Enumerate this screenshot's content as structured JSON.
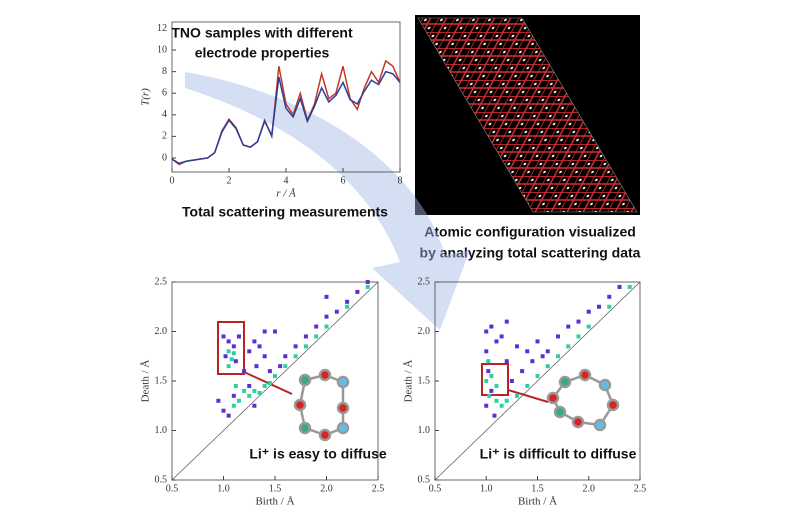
{
  "image_caption": [
    "Atomic configuration visualized",
    "by analyzing total scattering data"
  ],
  "chart_data": [
    {
      "type": "line",
      "xlabel": "r / Å",
      "ylabel": "T(r)",
      "annotations": [
        "TNO samples with different",
        "electrode properties",
        "Total scattering measurements"
      ],
      "x": [
        0,
        0.25,
        0.5,
        0.75,
        1,
        1.25,
        1.5,
        1.75,
        2,
        2.25,
        2.5,
        2.75,
        3,
        3.25,
        3.5,
        3.75,
        4,
        4.25,
        4.5,
        4.75,
        5,
        5.25,
        5.5,
        5.75,
        6,
        6.25,
        6.5,
        6.75,
        7,
        7.25,
        7.5,
        7.75,
        8
      ],
      "series": [
        {
          "color": "#c0392b",
          "values": [
            -0.1,
            -0.6,
            -0.3,
            -0.2,
            -0.1,
            0,
            0.5,
            2.5,
            3.6,
            2.8,
            1.2,
            1,
            1.5,
            3.5,
            2,
            8.5,
            5,
            4,
            6,
            3.5,
            5,
            7.8,
            5.5,
            6,
            8.5,
            5.5,
            4.5,
            6.5,
            8,
            7,
            9,
            8.5,
            7
          ]
        },
        {
          "color": "#2c3e9a",
          "values": [
            -0.1,
            -0.5,
            -0.3,
            -0.2,
            -0.1,
            0,
            0.5,
            2.4,
            3.5,
            2.7,
            1.2,
            1,
            1.5,
            3.4,
            2.1,
            7.5,
            4.6,
            3.8,
            5.5,
            3.4,
            4.8,
            6.5,
            5.2,
            5.8,
            7,
            5.4,
            5,
            6.2,
            7.2,
            6.8,
            8,
            7.8,
            7
          ]
        }
      ],
      "xlim": [
        0,
        8
      ],
      "xticks": [
        0,
        2,
        4,
        6,
        8
      ],
      "ylim": [
        -1.3,
        12.6
      ],
      "yticks": [
        0,
        2,
        4,
        6,
        8,
        10,
        12
      ]
    },
    {
      "type": "scatter",
      "xlabel": "Birth / Å",
      "ylabel": "Death / Å",
      "annotations": [
        "Li⁺ is easy to diffuse"
      ],
      "series": [
        {
          "color": "#5a2fd6",
          "x": [
            1.0,
            1.05,
            1.1,
            1.02,
            1.12,
            1.15,
            1.25,
            1.3,
            1.35,
            1.4,
            1.32,
            1.45,
            1.2,
            1.5,
            1.4,
            0.95,
            1.0,
            1.05,
            1.1,
            1.25,
            1.3,
            1.6,
            1.7,
            1.8,
            1.9,
            2.0,
            2.1,
            2.2,
            2.3,
            2.4,
            2.0,
            1.55
          ],
          "values": [
            1.95,
            1.9,
            1.85,
            1.75,
            1.7,
            1.95,
            1.8,
            1.9,
            1.85,
            1.75,
            1.65,
            1.6,
            1.6,
            2.0,
            2.0,
            1.3,
            1.2,
            1.15,
            1.35,
            1.45,
            1.25,
            1.75,
            1.85,
            1.95,
            2.05,
            2.15,
            2.2,
            2.3,
            2.4,
            2.5,
            2.35,
            1.65
          ]
        },
        {
          "color": "#2fd0a0",
          "x": [
            1.05,
            1.08,
            1.1,
            1.05,
            1.12,
            1.2,
            1.15,
            1.25,
            1.3,
            1.4,
            1.5,
            1.6,
            1.7,
            1.8,
            1.9,
            2.0,
            2.2,
            2.4,
            1.35,
            1.45,
            1.1
          ],
          "values": [
            1.8,
            1.72,
            1.78,
            1.65,
            1.45,
            1.4,
            1.3,
            1.35,
            1.4,
            1.45,
            1.55,
            1.65,
            1.75,
            1.85,
            1.95,
            2.05,
            2.25,
            2.45,
            1.38,
            1.48,
            1.25
          ]
        }
      ],
      "xlim": [
        0.5,
        2.5
      ],
      "xticks": [
        {
          "value": 0.5,
          "label": "0.5"
        },
        {
          "value": 1,
          "label": "1.0"
        },
        {
          "value": 1.5,
          "label": "1.5"
        },
        {
          "value": 2,
          "label": "2.0"
        },
        {
          "value": 2.5,
          "label": "2.5"
        }
      ],
      "ylim": [
        0.5,
        2.5
      ],
      "yticks": [
        {
          "value": 0.5,
          "label": "0.5"
        },
        {
          "value": 1,
          "label": "1.0"
        },
        {
          "value": 1.5,
          "label": "1.5"
        },
        {
          "value": 2,
          "label": "2.0"
        },
        {
          "value": 2.5,
          "label": "2.5"
        }
      ]
    },
    {
      "type": "scatter",
      "xlabel": "Birth / Å",
      "ylabel": "Death / Å",
      "annotations": [
        "Li⁺ is difficult to diffuse"
      ],
      "series": [
        {
          "color": "#5a2fd6",
          "x": [
            1.0,
            1.05,
            1.1,
            1.15,
            1.2,
            1.0,
            1.02,
            1.05,
            1.0,
            1.08,
            1.2,
            1.3,
            1.4,
            1.5,
            1.35,
            1.25,
            1.6,
            1.7,
            1.8,
            1.9,
            2.0,
            2.1,
            2.2,
            2.3,
            1.45,
            1.55
          ],
          "values": [
            2.0,
            2.05,
            1.9,
            1.95,
            2.1,
            1.8,
            1.6,
            1.4,
            1.25,
            1.15,
            1.7,
            1.85,
            1.8,
            1.9,
            1.6,
            1.5,
            1.8,
            1.95,
            2.05,
            2.1,
            2.2,
            2.25,
            2.35,
            2.45,
            1.7,
            1.75
          ]
        },
        {
          "color": "#2fd0a0",
          "x": [
            1.02,
            1.0,
            1.05,
            1.03,
            1.1,
            1.15,
            1.2,
            1.3,
            1.4,
            1.5,
            1.6,
            1.7,
            1.8,
            1.9,
            2.0,
            2.2,
            2.4,
            1.1
          ],
          "values": [
            1.7,
            1.5,
            1.55,
            1.35,
            1.3,
            1.25,
            1.3,
            1.35,
            1.45,
            1.55,
            1.65,
            1.75,
            1.85,
            1.95,
            2.05,
            2.25,
            2.45,
            1.45
          ]
        }
      ],
      "xlim": [
        0.5,
        2.5
      ],
      "xticks": [
        {
          "value": 0.5,
          "label": "0.5"
        },
        {
          "value": 1,
          "label": "1.0"
        },
        {
          "value": 1.5,
          "label": "1.5"
        },
        {
          "value": 2,
          "label": "2.0"
        },
        {
          "value": 2.5,
          "label": "2.5"
        }
      ],
      "ylim": [
        0.5,
        2.5
      ],
      "yticks": [
        {
          "value": 0.5,
          "label": "0.5"
        },
        {
          "value": 1,
          "label": "1.0"
        },
        {
          "value": 1.5,
          "label": "1.5"
        },
        {
          "value": 2,
          "label": "2.0"
        },
        {
          "value": 2.5,
          "label": "2.5"
        }
      ]
    }
  ]
}
